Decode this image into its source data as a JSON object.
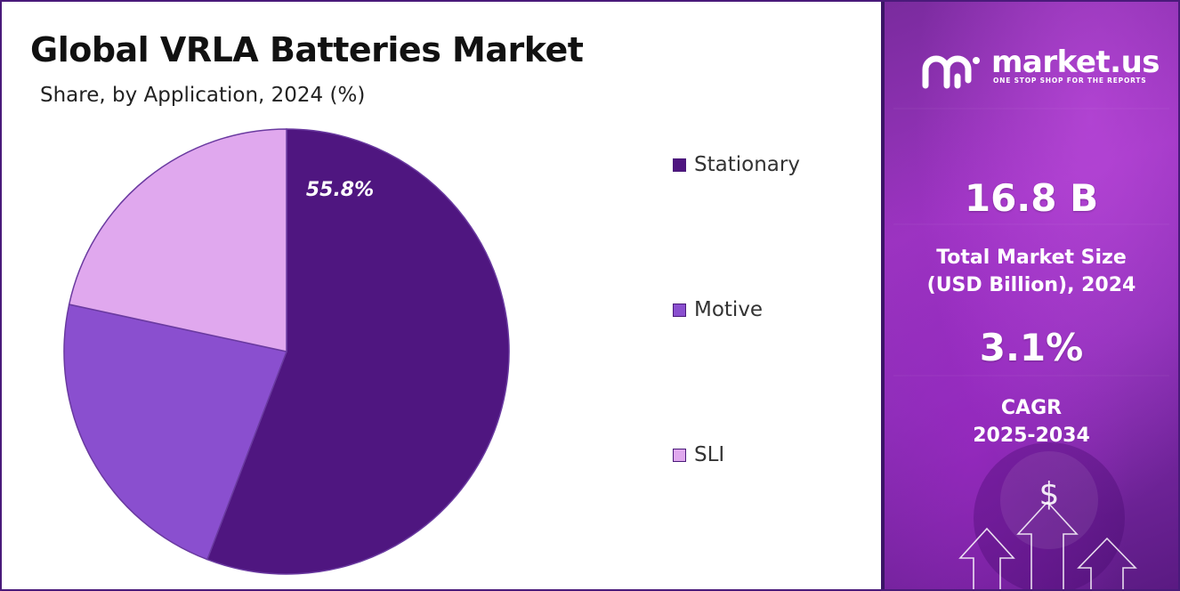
{
  "title": "Global VRLA Batteries Market",
  "subtitle": "Share, by Application, 2024 (%)",
  "chart_data": {
    "type": "pie",
    "categories": [
      "Stationary",
      "Motive",
      "SLI"
    ],
    "values": [
      55.8,
      22.6,
      21.6
    ],
    "labels": [
      "55.8%",
      "",
      ""
    ],
    "colors": [
      "#4f1680",
      "#8a4fcf",
      "#e0a8ee"
    ],
    "legend_position": "right"
  },
  "legend": [
    {
      "label": "Stationary",
      "color": "#4f1680"
    },
    {
      "label": "Motive",
      "color": "#8a4fcf"
    },
    {
      "label": "SLI",
      "color": "#e0a8ee"
    }
  ],
  "brand": {
    "name": "market.us",
    "tagline": "ONE STOP SHOP FOR THE REPORTS",
    "icon": "market-us-logo-icon"
  },
  "kpis": {
    "market_size_value": "16.8 B",
    "market_size_label_1": "Total Market Size",
    "market_size_label_2": "(USD Billion), 2024",
    "cagr_value": "3.1%",
    "cagr_label_1": "CAGR",
    "cagr_label_2": "2025-2034"
  },
  "decor": {
    "dollar_symbol": "$"
  }
}
